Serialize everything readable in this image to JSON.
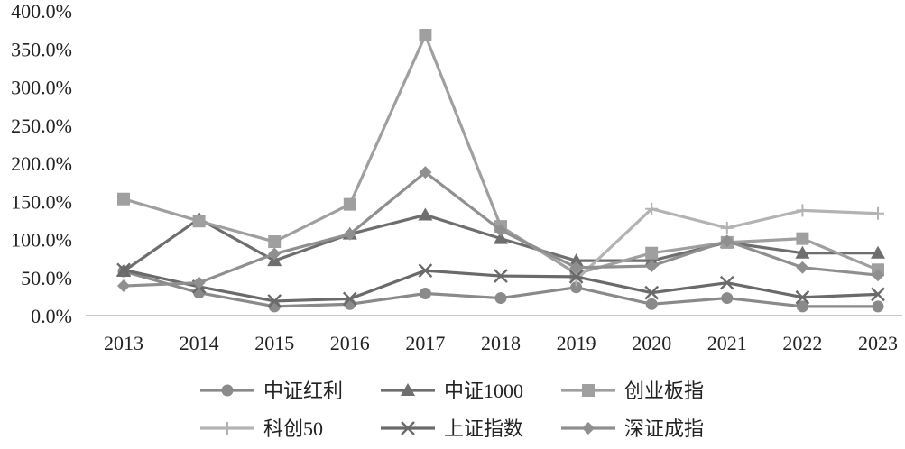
{
  "chart_data": {
    "type": "line",
    "title": "",
    "xlabel": "",
    "ylabel": "",
    "categories": [
      "2013",
      "2014",
      "2015",
      "2016",
      "2017",
      "2018",
      "2019",
      "2020",
      "2021",
      "2022",
      "2023"
    ],
    "ylim": [
      0,
      400
    ],
    "y_ticks": [
      0,
      50,
      100,
      150,
      200,
      250,
      300,
      350,
      400
    ],
    "y_tick_labels": [
      "0.0%",
      "50.0%",
      "100.0%",
      "150.0%",
      "200.0%",
      "250.0%",
      "300.0%",
      "350.0%",
      "400.0%"
    ],
    "grid": false,
    "legend_position": "bottom",
    "series": [
      {
        "name": "中证红利",
        "marker": "circle",
        "color": "#8a8a8a",
        "values": [
          58,
          30,
          12,
          15,
          29,
          23,
          37,
          15,
          23,
          12,
          12
        ]
      },
      {
        "name": "中证1000",
        "marker": "triangle",
        "color": "#6e6e6e",
        "values": [
          58,
          127,
          72,
          107,
          132,
          101,
          72,
          72,
          96,
          82,
          82
        ]
      },
      {
        "name": "创业板指",
        "marker": "square",
        "color": "#9f9f9f",
        "values": [
          153,
          124,
          97,
          146,
          368,
          117,
          55,
          82,
          96,
          101,
          60
        ]
      },
      {
        "name": "科创50",
        "marker": "plus",
        "color": "#b3b3b3",
        "values": [
          null,
          null,
          null,
          null,
          null,
          null,
          47,
          140,
          115,
          138,
          134
        ]
      },
      {
        "name": "上证指数",
        "marker": "x",
        "color": "#6a6a6a",
        "values": [
          60,
          38,
          19,
          22,
          59,
          52,
          51,
          30,
          43,
          24,
          28
        ]
      },
      {
        "name": "深证成指",
        "marker": "diamond",
        "color": "#8f8f8f",
        "values": [
          39,
          43,
          81,
          107,
          188,
          112,
          63,
          65,
          98,
          63,
          53
        ]
      }
    ]
  }
}
